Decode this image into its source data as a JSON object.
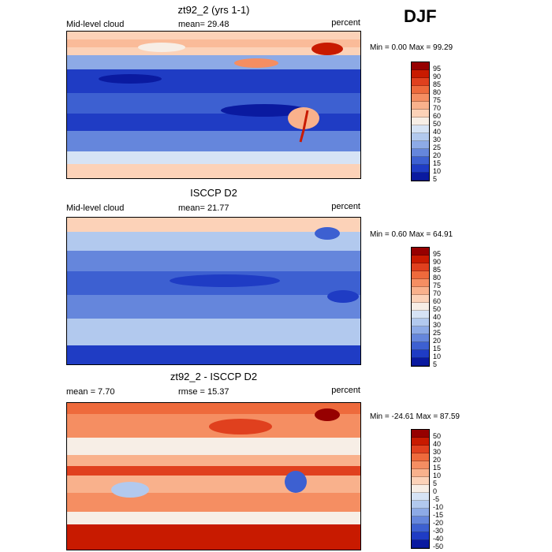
{
  "season": "DJF",
  "panels": [
    {
      "title": "zt92_2 (yrs 1-1)",
      "left_label": "Mid-level cloud",
      "stat_label": "mean=  29.48",
      "units": "percent",
      "minmax": "Min =   0.00 Max =  99.29",
      "colorbar_labels": [
        "95",
        "90",
        "85",
        "80",
        "75",
        "70",
        "60",
        "50",
        "40",
        "30",
        "25",
        "20",
        "15",
        "10",
        "5"
      ],
      "colorbar_colors": [
        "#960000",
        "#c81a00",
        "#e0401e",
        "#ee6a3c",
        "#f58e62",
        "#f9b18c",
        "#fcd2b8",
        "#f7eee6",
        "#d6e3f5",
        "#b2c9ee",
        "#8daae6",
        "#6586dc",
        "#3d60d1",
        "#1f3cc4",
        "#0a1aa0"
      ],
      "mean_value": 29.48,
      "min_value": 0.0,
      "max_value": 99.29
    },
    {
      "title": "ISCCP D2",
      "left_label": "Mid-level cloud",
      "stat_label": "mean=  21.77",
      "units": "percent",
      "minmax": "Min =   0.60 Max =  64.91",
      "colorbar_labels": [
        "95",
        "90",
        "85",
        "80",
        "75",
        "70",
        "60",
        "50",
        "40",
        "30",
        "25",
        "20",
        "15",
        "10",
        "5"
      ],
      "colorbar_colors": [
        "#960000",
        "#c81a00",
        "#e0401e",
        "#ee6a3c",
        "#f58e62",
        "#f9b18c",
        "#fcd2b8",
        "#f7eee6",
        "#d6e3f5",
        "#b2c9ee",
        "#8daae6",
        "#6586dc",
        "#3d60d1",
        "#1f3cc4",
        "#0a1aa0"
      ],
      "mean_value": 21.77,
      "min_value": 0.6,
      "max_value": 64.91
    },
    {
      "title": "zt92_2 - ISCCP D2",
      "left_label": "mean =    7.70",
      "stat_label": "rmse =  15.37",
      "units": "percent",
      "minmax": "Min = -24.61 Max =  87.59",
      "colorbar_labels": [
        "50",
        "40",
        "30",
        "20",
        "15",
        "10",
        "5",
        "0",
        "-5",
        "-10",
        "-15",
        "-20",
        "-30",
        "-40",
        "-50"
      ],
      "colorbar_colors": [
        "#960000",
        "#c81a00",
        "#e0401e",
        "#ee6a3c",
        "#f58e62",
        "#f9b18c",
        "#fcd2b8",
        "#f7eee6",
        "#d6e3f5",
        "#b2c9ee",
        "#8daae6",
        "#6586dc",
        "#3d60d1",
        "#1f3cc4",
        "#0a1aa0"
      ],
      "mean_value": 7.7,
      "rmse_value": 15.37,
      "min_value": -24.61,
      "max_value": 87.59
    }
  ]
}
